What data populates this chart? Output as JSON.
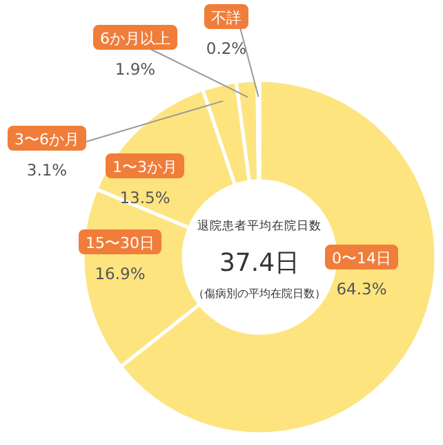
{
  "chart_data": {
    "type": "donut",
    "title": "退院患者平均在院日数",
    "annotations": [
      "37.4日",
      "（傷病別の平均在院日数）"
    ],
    "categories": [
      "0〜14日",
      "15〜30日",
      "1〜3か月",
      "3〜6か月",
      "6か月以上",
      "不詳"
    ],
    "values": [
      64.3,
      16.9,
      13.5,
      3.1,
      1.9,
      0.2
    ],
    "value_labels": [
      "64.3%",
      "16.9%",
      "13.5%",
      "3.1%",
      "1.9%",
      "0.2%"
    ],
    "colors": [
      "#fde47f",
      "#fde47f",
      "#fde47f",
      "#fde47f",
      "#fde47f",
      "#fde47f"
    ]
  }
}
